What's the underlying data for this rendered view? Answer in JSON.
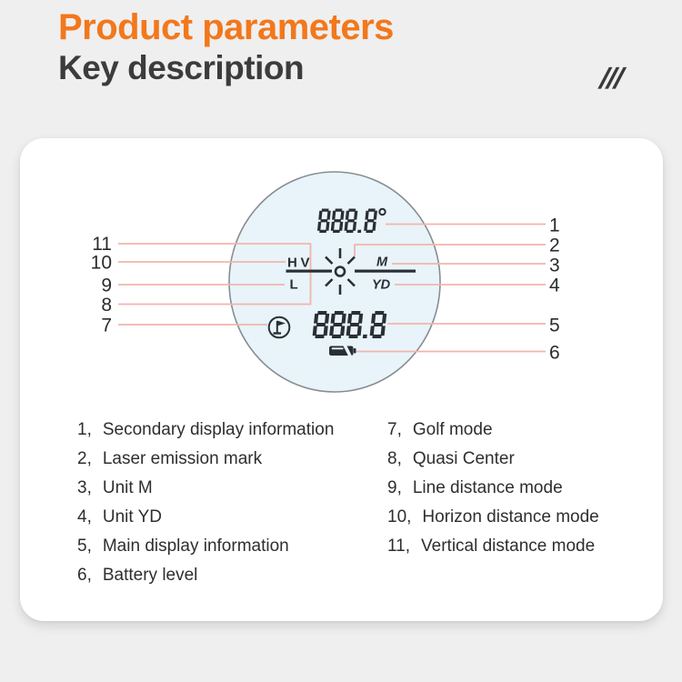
{
  "header": {
    "title": "Product parameters",
    "subtitle": "Key description",
    "decoration": "///"
  },
  "display": {
    "secondary_value": "888.8",
    "secondary_unit_symbol": "°",
    "main_value": "888.8",
    "h_label": "H",
    "v_label": "V",
    "l_label": "L",
    "m_label": "M",
    "yd_label": "YD",
    "icons": [
      "laser-reticle-icon",
      "golf-mode-icon",
      "battery-icon",
      "degree-symbol"
    ]
  },
  "callouts": {
    "left_numbers": [
      "11",
      "10",
      "9",
      "8",
      "7"
    ],
    "right_numbers": [
      "1",
      "2",
      "3",
      "4",
      "5",
      "6"
    ]
  },
  "legend": {
    "left": [
      {
        "num": "1",
        "label": "Secondary display information"
      },
      {
        "num": "2",
        "label": "Laser emission mark"
      },
      {
        "num": "3",
        "label": "Unit M"
      },
      {
        "num": "4",
        "label": "Unit YD"
      },
      {
        "num": "5",
        "label": "Main display information"
      },
      {
        "num": "6",
        "label": "Battery level"
      }
    ],
    "right": [
      {
        "num": "7",
        "label": "Golf mode"
      },
      {
        "num": "8",
        "label": "Quasi Center"
      },
      {
        "num": "9",
        "label": "Line distance mode"
      },
      {
        "num": "10",
        "label": "Horizon distance mode"
      },
      {
        "num": "11",
        "label": "Vertical distance mode"
      }
    ]
  },
  "colors": {
    "accent_orange": "#F2781B",
    "heading_dark": "#3C3C3C",
    "callout_line": "#F3B4AD",
    "lcd_dark": "#2A2F35",
    "lens_fill": "#E8F4F9",
    "lens_border": "#878D92",
    "page_background": "#EFEFF0",
    "card_background": "#FFFFFF"
  }
}
